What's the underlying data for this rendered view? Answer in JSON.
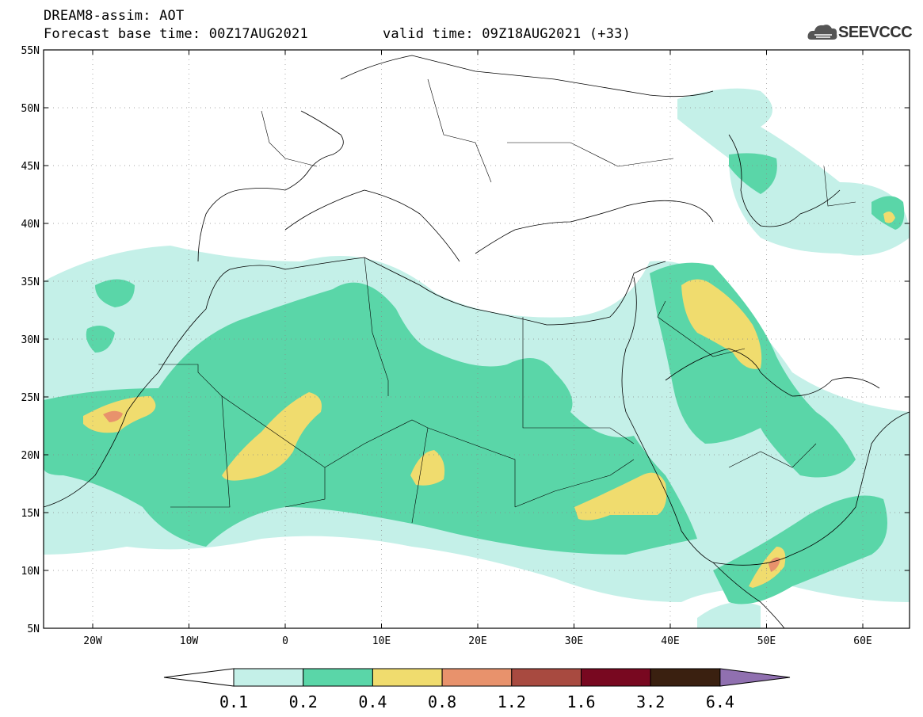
{
  "header": {
    "title": "DREAM8-assim: AOT",
    "forecast_base": "Forecast base time: 00Z17AUG2021",
    "valid_time": "valid time: 09Z18AUG2021 (+33)",
    "logo_text": "SEEVCCC"
  },
  "map": {
    "lat_labels": [
      "55N",
      "50N",
      "45N",
      "40N",
      "35N",
      "30N",
      "25N",
      "20N",
      "15N",
      "10N",
      "5N"
    ],
    "lon_labels": [
      "20W",
      "10W",
      "0",
      "10E",
      "20E",
      "30E",
      "40E",
      "50E",
      "60E"
    ],
    "colors": {
      "c1": "#c4f0e8",
      "c2": "#5ad6a8",
      "c3": "#f0dc6e",
      "c4": "#e8926c",
      "c5": "#a84a40",
      "c6": "#780820",
      "c7": "#3a2010",
      "c8": "#9070b0",
      "border": "#000000"
    }
  },
  "colorbar": {
    "labels": [
      "0.1",
      "0.2",
      "0.4",
      "0.8",
      "1.2",
      "1.6",
      "3.2",
      "6.4"
    ]
  }
}
